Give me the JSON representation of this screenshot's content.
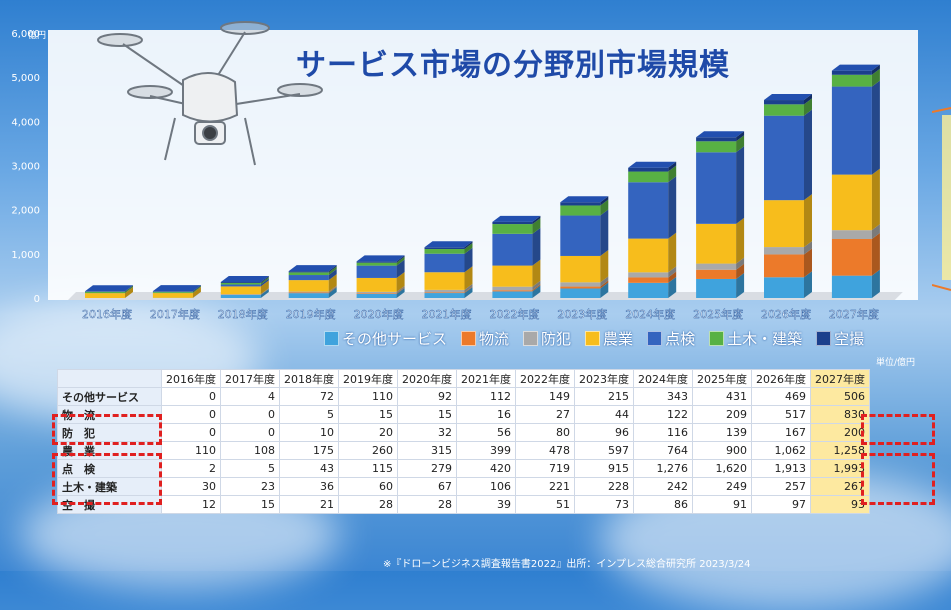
{
  "title": "サービス市場の分野別市場規模",
  "unit_label": "単位/億円",
  "source_note": "※『ドローンビジネス調査報告書2022』出所：インプレス総合研究所 2023/3/24",
  "table": {
    "headers": [
      "2016年度",
      "2017年度",
      "2018年度",
      "2019年度",
      "2020年度",
      "2021年度",
      "2022年度",
      "2023年度",
      "2024年度",
      "2025年度",
      "2026年度",
      "2027年度"
    ],
    "rows": [
      {
        "label": "その他サービス",
        "values": [
          "0",
          "4",
          "72",
          "110",
          "92",
          "112",
          "149",
          "215",
          "343",
          "431",
          "469",
          "506"
        ]
      },
      {
        "label": "物　流",
        "values": [
          "0",
          "0",
          "5",
          "15",
          "15",
          "16",
          "27",
          "44",
          "122",
          "209",
          "517",
          "830"
        ]
      },
      {
        "label": "防　犯",
        "values": [
          "0",
          "0",
          "10",
          "20",
          "32",
          "56",
          "80",
          "96",
          "116",
          "139",
          "167",
          "200"
        ]
      },
      {
        "label": "農　業",
        "values": [
          "110",
          "108",
          "175",
          "260",
          "315",
          "399",
          "478",
          "597",
          "764",
          "900",
          "1,062",
          "1,258"
        ]
      },
      {
        "label": "点　検",
        "values": [
          "2",
          "5",
          "43",
          "115",
          "279",
          "420",
          "719",
          "915",
          "1,276",
          "1,620",
          "1,913",
          "1,993"
        ]
      },
      {
        "label": "土木・建築",
        "values": [
          "30",
          "23",
          "36",
          "60",
          "67",
          "106",
          "221",
          "228",
          "242",
          "249",
          "257",
          "267"
        ]
      },
      {
        "label": "空　撮",
        "values": [
          "12",
          "15",
          "21",
          "28",
          "28",
          "39",
          "51",
          "73",
          "86",
          "91",
          "97",
          "93"
        ]
      }
    ]
  },
  "chart_data": {
    "type": "bar",
    "stacked": true,
    "title": "サービス市場の分野別市場規模",
    "ylabel": "億円",
    "ylim": [
      0,
      6000
    ],
    "yticks": [
      "0",
      "1,000",
      "2,000",
      "3,000",
      "4,000",
      "5,000",
      "6,000"
    ],
    "categories": [
      "2016年度",
      "2017年度",
      "2018年度",
      "2019年度",
      "2020年度",
      "2021年度",
      "2022年度",
      "2023年度",
      "2024年度",
      "2025年度",
      "2026年度",
      "2027年度"
    ],
    "series": [
      {
        "name": "その他サービス",
        "color": "#3fa3dd",
        "values": [
          0,
          4,
          72,
          110,
          92,
          112,
          149,
          215,
          343,
          431,
          469,
          506
        ]
      },
      {
        "name": "物流",
        "color": "#ec7a2a",
        "values": [
          0,
          0,
          5,
          15,
          15,
          16,
          27,
          44,
          122,
          209,
          517,
          830
        ]
      },
      {
        "name": "防犯",
        "color": "#a9a9a9",
        "values": [
          0,
          0,
          10,
          20,
          32,
          56,
          80,
          96,
          116,
          139,
          167,
          200
        ]
      },
      {
        "name": "農業",
        "color": "#f7bd1c",
        "values": [
          110,
          108,
          175,
          260,
          315,
          399,
          478,
          597,
          764,
          900,
          1062,
          1258
        ]
      },
      {
        "name": "点検",
        "color": "#3464bf",
        "values": [
          2,
          5,
          43,
          115,
          279,
          420,
          719,
          915,
          1276,
          1620,
          1913,
          1993
        ]
      },
      {
        "name": "土木・建築",
        "color": "#58b144",
        "values": [
          30,
          23,
          36,
          60,
          67,
          106,
          221,
          228,
          242,
          249,
          257,
          267
        ]
      },
      {
        "name": "空撮",
        "color": "#1b3f8c",
        "values": [
          12,
          15,
          21,
          28,
          28,
          39,
          51,
          73,
          86,
          91,
          97,
          93
        ]
      }
    ],
    "legend_position": "bottom",
    "grid": false
  }
}
